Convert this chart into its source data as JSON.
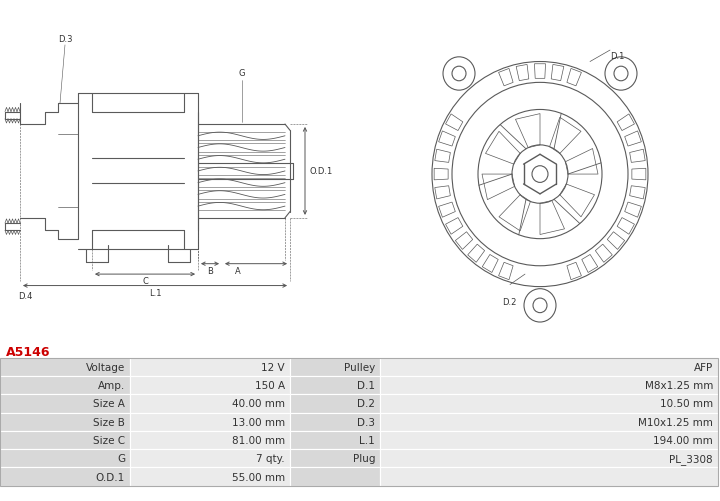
{
  "title_code": "A5146",
  "title_color": "#cc0000",
  "bg_color": "#ffffff",
  "table_label_bg": "#d8d8d8",
  "table_value_bg": "#ebebeb",
  "table_border_color": "#ffffff",
  "table_data": [
    [
      "Voltage",
      "12 V",
      "Pulley",
      "AFP"
    ],
    [
      "Amp.",
      "150 A",
      "D.1",
      "M8x1.25 mm"
    ],
    [
      "Size A",
      "40.00 mm",
      "D.2",
      "10.50 mm"
    ],
    [
      "Size B",
      "13.00 mm",
      "D.3",
      "M10x1.25 mm"
    ],
    [
      "Size C",
      "81.00 mm",
      "L.1",
      "194.00 mm"
    ],
    [
      "G",
      "7 qty.",
      "Plug",
      "PL_3308"
    ],
    [
      "O.D.1",
      "55.00 mm",
      "",
      ""
    ]
  ],
  "lc": "#5a5a5a",
  "lw": 0.8,
  "label_fs": 6.0,
  "table_fs": 7.5,
  "title_fs": 9
}
